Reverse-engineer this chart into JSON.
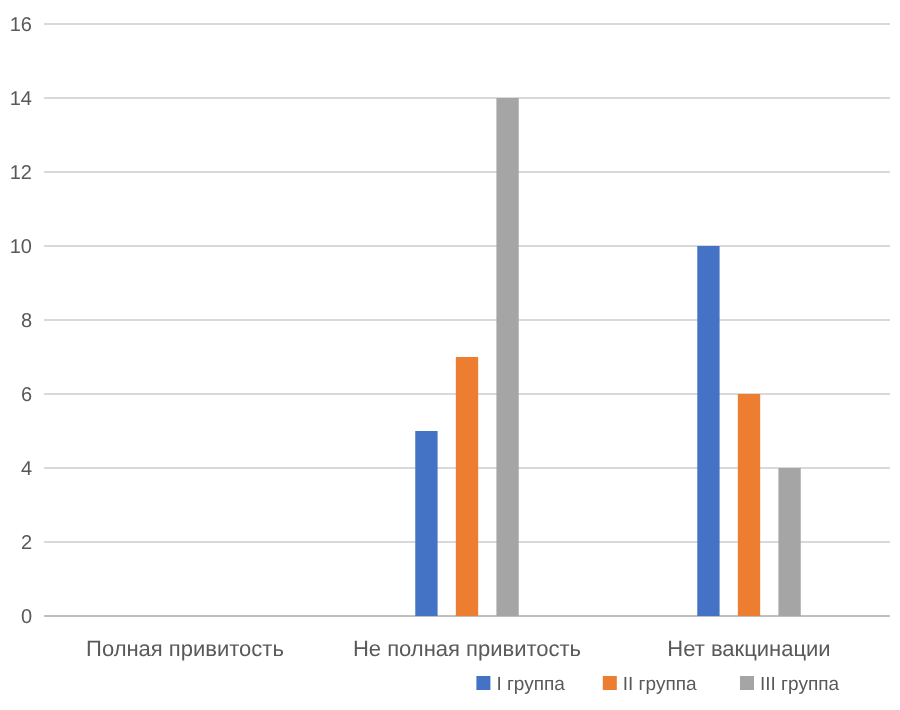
{
  "chart_data": {
    "type": "bar",
    "categories": [
      "Полная привитость",
      "Не полная привитость",
      "Нет вакцинации"
    ],
    "series": [
      {
        "name": "I группа",
        "color": "#4472c4",
        "values": [
          0,
          5,
          10
        ]
      },
      {
        "name": "II группа",
        "color": "#ed7d31",
        "values": [
          0,
          7,
          6
        ]
      },
      {
        "name": "III группа",
        "color": "#a5a5a5",
        "values": [
          0,
          14,
          4
        ]
      }
    ],
    "ylim": [
      0,
      16
    ],
    "yticks": [
      0,
      2,
      4,
      6,
      8,
      10,
      12,
      14,
      16
    ],
    "grid": "y",
    "legend": "bottom"
  }
}
